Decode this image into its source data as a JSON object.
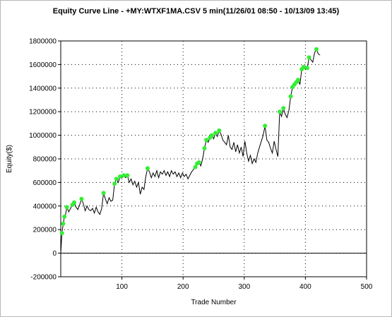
{
  "chart_data": {
    "type": "line",
    "title": "Equity Curve Line - +MY:WTXF1MA.CSV 5 min(11/26/01 08:50 - 10/13/09 13:45)",
    "xlabel": "Trade Number",
    "ylabel": "Equity($)",
    "xlim": [
      0,
      500
    ],
    "ylim": [
      -200000,
      1800000
    ],
    "xticks": [
      100,
      200,
      300,
      400,
      500
    ],
    "xtick_labels": [
      "100",
      "200",
      "300",
      "400",
      "500"
    ],
    "yticks": [
      -200000,
      0,
      200000,
      400000,
      600000,
      800000,
      1000000,
      1200000,
      1400000,
      1600000,
      1800000
    ],
    "ytick_labels": [
      "-200000",
      "0",
      "200000",
      "400000",
      "600000",
      "800000",
      "1000000",
      "1200000",
      "1400000",
      "1600000",
      "1800000"
    ],
    "grid": true,
    "line_color": "#000000",
    "marker_color": "#33ee33",
    "series": [
      {
        "values": [
          [
            0,
            0
          ],
          [
            2,
            170000
          ],
          [
            4,
            250000
          ],
          [
            6,
            310000
          ],
          [
            8,
            330000
          ],
          [
            10,
            390000
          ],
          [
            13,
            350000
          ],
          [
            16,
            380000
          ],
          [
            19,
            410000
          ],
          [
            22,
            430000
          ],
          [
            25,
            390000
          ],
          [
            28,
            370000
          ],
          [
            31,
            410000
          ],
          [
            34,
            460000
          ],
          [
            37,
            420000
          ],
          [
            40,
            360000
          ],
          [
            43,
            400000
          ],
          [
            46,
            370000
          ],
          [
            49,
            360000
          ],
          [
            52,
            380000
          ],
          [
            55,
            340000
          ],
          [
            58,
            390000
          ],
          [
            61,
            350000
          ],
          [
            64,
            330000
          ],
          [
            67,
            380000
          ],
          [
            70,
            510000
          ],
          [
            73,
            460000
          ],
          [
            76,
            420000
          ],
          [
            79,
            470000
          ],
          [
            82,
            440000
          ],
          [
            85,
            450000
          ],
          [
            88,
            590000
          ],
          [
            91,
            630000
          ],
          [
            94,
            600000
          ],
          [
            97,
            650000
          ],
          [
            100,
            640000
          ],
          [
            103,
            660000
          ],
          [
            106,
            640000
          ],
          [
            109,
            660000
          ],
          [
            112,
            600000
          ],
          [
            115,
            630000
          ],
          [
            118,
            580000
          ],
          [
            121,
            610000
          ],
          [
            124,
            560000
          ],
          [
            127,
            600000
          ],
          [
            130,
            500000
          ],
          [
            133,
            560000
          ],
          [
            136,
            540000
          ],
          [
            139,
            650000
          ],
          [
            142,
            720000
          ],
          [
            145,
            690000
          ],
          [
            148,
            640000
          ],
          [
            151,
            680000
          ],
          [
            154,
            650000
          ],
          [
            157,
            700000
          ],
          [
            160,
            640000
          ],
          [
            163,
            690000
          ],
          [
            166,
            670000
          ],
          [
            169,
            700000
          ],
          [
            172,
            660000
          ],
          [
            175,
            690000
          ],
          [
            178,
            650000
          ],
          [
            181,
            700000
          ],
          [
            184,
            670000
          ],
          [
            187,
            690000
          ],
          [
            190,
            650000
          ],
          [
            193,
            680000
          ],
          [
            196,
            640000
          ],
          [
            199,
            680000
          ],
          [
            202,
            650000
          ],
          [
            205,
            670000
          ],
          [
            208,
            630000
          ],
          [
            211,
            660000
          ],
          [
            214,
            690000
          ],
          [
            217,
            710000
          ],
          [
            220,
            730000
          ],
          [
            223,
            760000
          ],
          [
            226,
            770000
          ],
          [
            229,
            740000
          ],
          [
            232,
            800000
          ],
          [
            235,
            890000
          ],
          [
            238,
            960000
          ],
          [
            241,
            940000
          ],
          [
            244,
            980000
          ],
          [
            247,
            1000000
          ],
          [
            250,
            970000
          ],
          [
            253,
            1020000
          ],
          [
            256,
            990000
          ],
          [
            259,
            1040000
          ],
          [
            262,
            1010000
          ],
          [
            265,
            960000
          ],
          [
            268,
            940000
          ],
          [
            271,
            920000
          ],
          [
            274,
            1000000
          ],
          [
            277,
            900000
          ],
          [
            280,
            880000
          ],
          [
            283,
            940000
          ],
          [
            286,
            860000
          ],
          [
            289,
            920000
          ],
          [
            292,
            850000
          ],
          [
            295,
            900000
          ],
          [
            298,
            820000
          ],
          [
            301,
            950000
          ],
          [
            304,
            850000
          ],
          [
            307,
            780000
          ],
          [
            310,
            830000
          ],
          [
            313,
            760000
          ],
          [
            316,
            800000
          ],
          [
            319,
            770000
          ],
          [
            322,
            850000
          ],
          [
            325,
            900000
          ],
          [
            328,
            950000
          ],
          [
            331,
            1000000
          ],
          [
            334,
            1080000
          ],
          [
            337,
            960000
          ],
          [
            340,
            940000
          ],
          [
            343,
            890000
          ],
          [
            346,
            850000
          ],
          [
            349,
            950000
          ],
          [
            352,
            880000
          ],
          [
            355,
            820000
          ],
          [
            358,
            1200000
          ],
          [
            361,
            1160000
          ],
          [
            364,
            1230000
          ],
          [
            367,
            1180000
          ],
          [
            370,
            1150000
          ],
          [
            373,
            1210000
          ],
          [
            376,
            1330000
          ],
          [
            379,
            1410000
          ],
          [
            382,
            1430000
          ],
          [
            385,
            1450000
          ],
          [
            388,
            1470000
          ],
          [
            391,
            1430000
          ],
          [
            394,
            1560000
          ],
          [
            397,
            1580000
          ],
          [
            400,
            1560000
          ],
          [
            403,
            1570000
          ],
          [
            406,
            1660000
          ],
          [
            409,
            1640000
          ],
          [
            412,
            1620000
          ],
          [
            415,
            1700000
          ],
          [
            418,
            1730000
          ],
          [
            421,
            1690000
          ],
          [
            424,
            1680000
          ]
        ]
      }
    ],
    "markers": [
      [
        2,
        170000
      ],
      [
        4,
        250000
      ],
      [
        6,
        310000
      ],
      [
        10,
        390000
      ],
      [
        19,
        410000
      ],
      [
        22,
        430000
      ],
      [
        34,
        460000
      ],
      [
        70,
        510000
      ],
      [
        88,
        590000
      ],
      [
        91,
        630000
      ],
      [
        97,
        650000
      ],
      [
        103,
        660000
      ],
      [
        109,
        660000
      ],
      [
        142,
        720000
      ],
      [
        220,
        730000
      ],
      [
        223,
        760000
      ],
      [
        226,
        770000
      ],
      [
        235,
        890000
      ],
      [
        238,
        960000
      ],
      [
        244,
        980000
      ],
      [
        247,
        1000000
      ],
      [
        253,
        1020000
      ],
      [
        259,
        1040000
      ],
      [
        334,
        1080000
      ],
      [
        358,
        1200000
      ],
      [
        364,
        1230000
      ],
      [
        376,
        1330000
      ],
      [
        379,
        1410000
      ],
      [
        382,
        1430000
      ],
      [
        385,
        1450000
      ],
      [
        388,
        1470000
      ],
      [
        394,
        1560000
      ],
      [
        397,
        1580000
      ],
      [
        403,
        1570000
      ],
      [
        406,
        1660000
      ],
      [
        418,
        1730000
      ]
    ]
  }
}
